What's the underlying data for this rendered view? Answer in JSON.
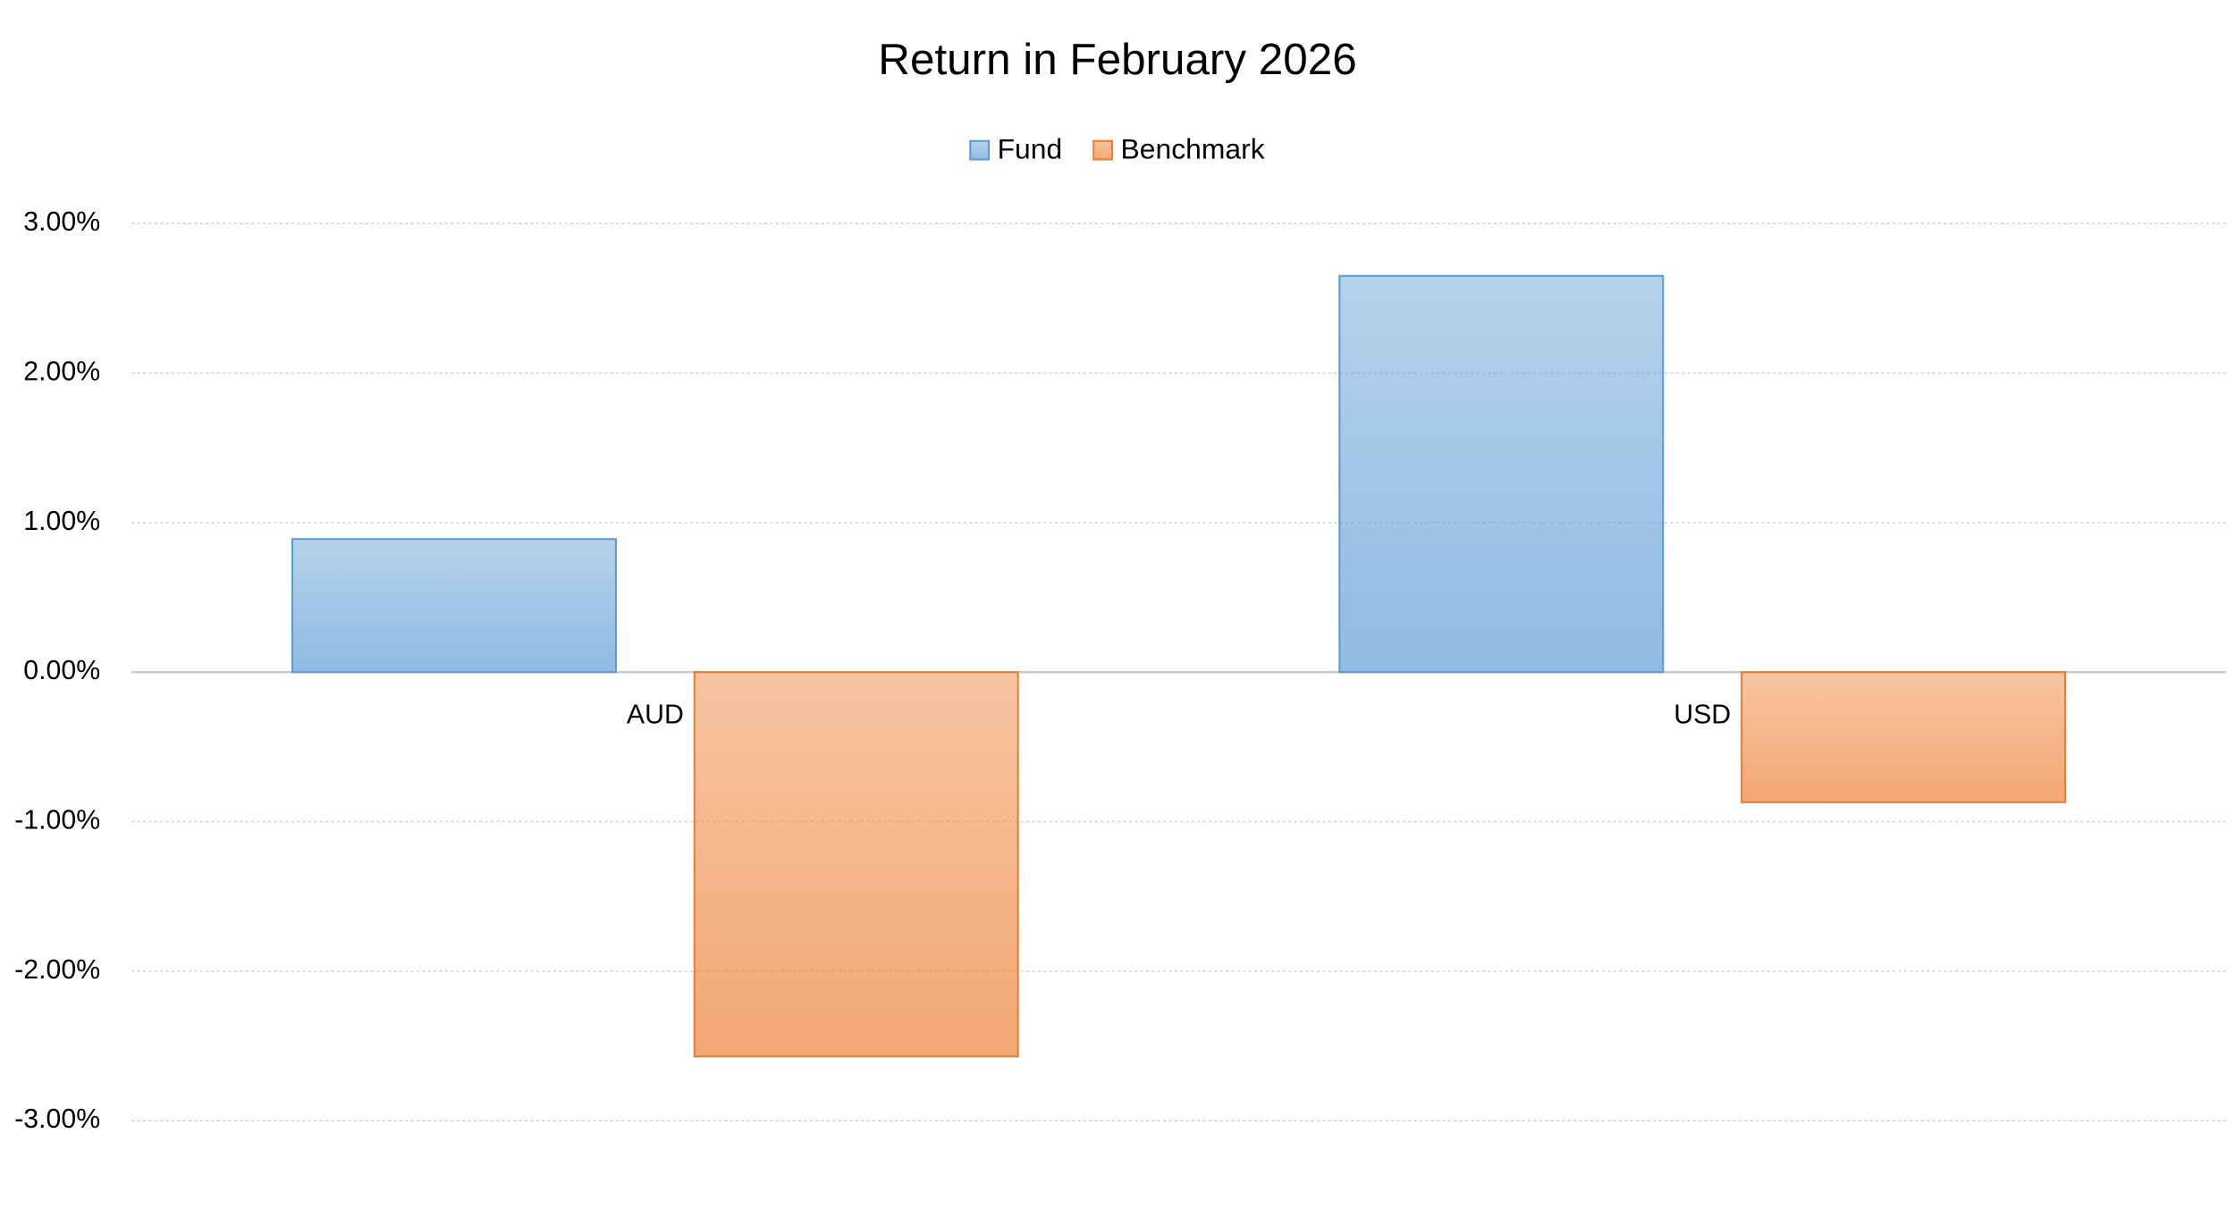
{
  "chart_data": {
    "type": "bar",
    "title": "Return in February 2026",
    "categories": [
      "AUD",
      "USD"
    ],
    "series": [
      {
        "name": "Fund",
        "color": "#5b9bd5",
        "values": [
          0.89,
          2.65
        ]
      },
      {
        "name": "Benchmark",
        "color": "#ed7d31",
        "values": [
          -2.57,
          -0.87
        ]
      }
    ],
    "ylim": [
      -3,
      3
    ],
    "yticks": [
      {
        "value": -3,
        "label": "-3.00%"
      },
      {
        "value": -2,
        "label": "-2.00%"
      },
      {
        "value": -1,
        "label": "-1.00%"
      },
      {
        "value": 0,
        "label": "0.00%"
      },
      {
        "value": 1,
        "label": "1.00%"
      },
      {
        "value": 2,
        "label": "2.00%"
      },
      {
        "value": 3,
        "label": "3.00%"
      }
    ],
    "grid": true,
    "legend": "top"
  }
}
